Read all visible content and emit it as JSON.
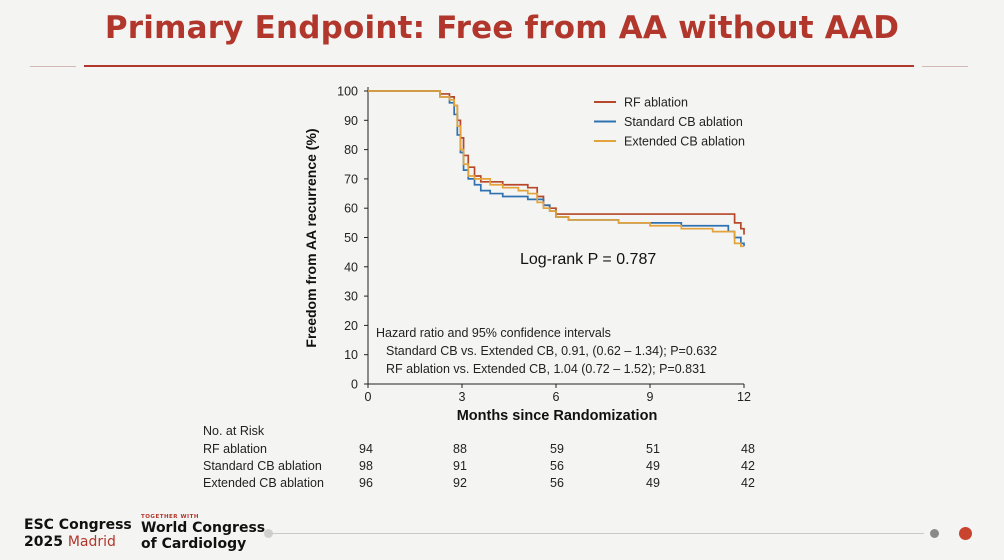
{
  "slide": {
    "title": "Primary Endpoint: Free from AA without AAD",
    "colors": {
      "accent": "#b1362c",
      "rf": "#b7472a",
      "standard": "#2f72b2",
      "extended": "#e3a33a"
    }
  },
  "chart_data": {
    "type": "line",
    "subtype": "kaplan-meier",
    "xlabel": "Months since Randomization",
    "ylabel": "Freedom from AA recurrence (%)",
    "xlim": [
      0,
      12
    ],
    "ylim": [
      0,
      100
    ],
    "xticks": [
      0,
      3,
      6,
      9,
      12
    ],
    "yticks": [
      0,
      10,
      20,
      30,
      40,
      50,
      60,
      70,
      80,
      90,
      100
    ],
    "legend_position": "top-right",
    "series": [
      {
        "name": "RF ablation",
        "color": "#b7472a",
        "x": [
          0,
          1.8,
          2.3,
          2.6,
          2.75,
          2.85,
          2.95,
          3.05,
          3.2,
          3.4,
          3.6,
          3.9,
          4.3,
          4.8,
          5.1,
          5.4,
          5.6,
          5.8,
          6.0,
          6.4,
          7.0,
          8.0,
          9.0,
          10.0,
          11.0,
          11.6,
          11.7,
          11.9,
          12.0
        ],
        "y": [
          100,
          100,
          99,
          98,
          95,
          90,
          84,
          78,
          74,
          71,
          69,
          69,
          68,
          68,
          67,
          64,
          61,
          60,
          58,
          58,
          58,
          58,
          58,
          58,
          58,
          58,
          55,
          53,
          51
        ]
      },
      {
        "name": "Standard CB ablation",
        "color": "#2f72b2",
        "x": [
          0,
          1.8,
          2.3,
          2.6,
          2.75,
          2.85,
          2.95,
          3.05,
          3.2,
          3.4,
          3.6,
          3.9,
          4.3,
          4.8,
          5.1,
          5.4,
          5.6,
          5.8,
          6.0,
          6.4,
          7.0,
          8.0,
          9.0,
          10.0,
          11.0,
          11.5,
          11.7,
          11.9,
          12.0
        ],
        "y": [
          100,
          100,
          98,
          96,
          92,
          85,
          79,
          73,
          70,
          68,
          66,
          65,
          64,
          64,
          63,
          63,
          61,
          59,
          57,
          56,
          56,
          55,
          55,
          54,
          54,
          52,
          50,
          48,
          47
        ]
      },
      {
        "name": "Extended CB ablation",
        "color": "#e3a33a",
        "x": [
          0,
          1.8,
          2.3,
          2.6,
          2.75,
          2.85,
          2.95,
          3.05,
          3.2,
          3.4,
          3.6,
          3.9,
          4.3,
          4.8,
          5.1,
          5.4,
          5.6,
          5.8,
          6.0,
          6.4,
          7.0,
          8.0,
          9.0,
          10.0,
          11.0,
          11.5,
          11.7,
          11.9,
          12.0
        ],
        "y": [
          100,
          100,
          98,
          97,
          95,
          88,
          80,
          75,
          71,
          70,
          70,
          68,
          67,
          66,
          65,
          62,
          60,
          59,
          57,
          56,
          56,
          55,
          54,
          53,
          52,
          52,
          48,
          47,
          47
        ]
      }
    ],
    "annotations": {
      "logrank": "Log-rank P = 0.787",
      "hr_title": "Hazard ratio and 95% confidence intervals",
      "hr_line1": "Standard CB vs. Extended CB, 0.91, (0.62 – 1.34); P=0.632",
      "hr_line2": "RF ablation vs. Extended CB, 1.04 (0.72 – 1.52); P=0.831"
    }
  },
  "risk_table": {
    "header": "No. at Risk",
    "rows": [
      {
        "label": "RF ablation",
        "values": [
          "94",
          "88",
          "59",
          "51",
          "48"
        ]
      },
      {
        "label": "Standard CB ablation",
        "values": [
          "98",
          "91",
          "56",
          "49",
          "42"
        ]
      },
      {
        "label": "Extended CB ablation",
        "values": [
          "96",
          "92",
          "56",
          "49",
          "42"
        ]
      }
    ]
  },
  "footer": {
    "esc_line1": "ESC Congress",
    "esc_year": "2025",
    "esc_city": "Madrid",
    "together": "TOGETHER WITH",
    "wcc_line1": "World Congress",
    "wcc_line2": "of Cardiology"
  }
}
